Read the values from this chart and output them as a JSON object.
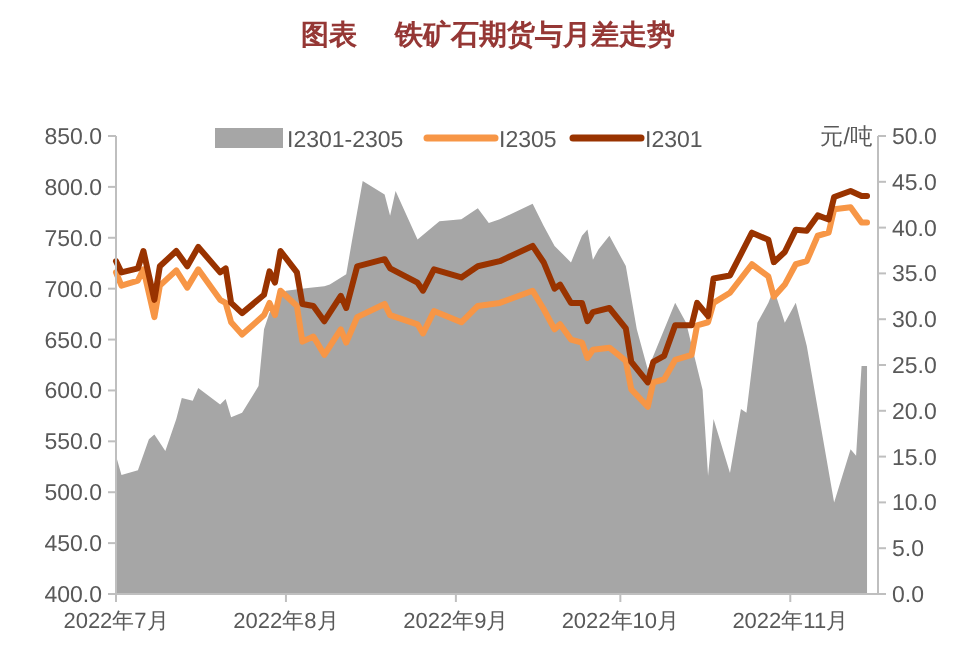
{
  "chart_data": {
    "type": "line",
    "title": "图表     铁矿石期货与月差走势",
    "y2label": "元/吨",
    "legend": "top",
    "grid": false,
    "xlim": [
      "2022-07-01",
      "2022-11-17"
    ],
    "xticks": [
      {
        "value": "2022-07-01",
        "label": "2022年7月"
      },
      {
        "value": "2022-08-01",
        "label": "2022年8月"
      },
      {
        "value": "2022-09-01",
        "label": "2022年9月"
      },
      {
        "value": "2022-10-01",
        "label": "2022年10月"
      },
      {
        "value": "2022-11-01",
        "label": "2022年11月"
      }
    ],
    "ylim": [
      400,
      850
    ],
    "yticks": [
      {
        "value": 400,
        "label": "400.0"
      },
      {
        "value": 450,
        "label": "450.0"
      },
      {
        "value": 500,
        "label": "500.0"
      },
      {
        "value": 550,
        "label": "550.0"
      },
      {
        "value": 600,
        "label": "600.0"
      },
      {
        "value": 650,
        "label": "650.0"
      },
      {
        "value": 700,
        "label": "700.0"
      },
      {
        "value": 750,
        "label": "750.0"
      },
      {
        "value": 800,
        "label": "800.0"
      },
      {
        "value": 850,
        "label": "850.0"
      }
    ],
    "y2lim": [
      0,
      50
    ],
    "y2ticks": [
      {
        "value": 0,
        "label": "0.0"
      },
      {
        "value": 5,
        "label": "5.0"
      },
      {
        "value": 10,
        "label": "10.0"
      },
      {
        "value": 15,
        "label": "15.0"
      },
      {
        "value": 20,
        "label": "20.0"
      },
      {
        "value": 25,
        "label": "25.0"
      },
      {
        "value": 30,
        "label": "30.0"
      },
      {
        "value": 35,
        "label": "35.0"
      },
      {
        "value": 40,
        "label": "40.0"
      },
      {
        "value": 45,
        "label": "45.0"
      },
      {
        "value": 50,
        "label": "50.0"
      }
    ],
    "series": [
      {
        "name": "I2301-2305",
        "type": "area",
        "axis": "y2",
        "color": "#a6a6a6",
        "x": [
          "2022-07-01",
          "2022-07-02",
          "2022-07-05",
          "2022-07-07",
          "2022-07-08",
          "2022-07-10",
          "2022-07-12",
          "2022-07-13",
          "2022-07-15",
          "2022-07-16",
          "2022-07-20",
          "2022-07-21",
          "2022-07-22",
          "2022-07-24",
          "2022-07-27",
          "2022-07-28",
          "2022-07-29",
          "2022-08-01",
          "2022-08-05",
          "2022-08-08",
          "2022-08-09",
          "2022-08-12",
          "2022-08-13",
          "2022-08-15",
          "2022-08-19",
          "2022-08-20",
          "2022-08-21",
          "2022-08-25",
          "2022-08-29",
          "2022-09-02",
          "2022-09-05",
          "2022-09-07",
          "2022-09-09",
          "2022-09-15",
          "2022-09-17",
          "2022-09-19",
          "2022-09-22",
          "2022-09-24",
          "2022-09-25",
          "2022-09-26",
          "2022-09-27",
          "2022-09-29",
          "2022-10-01",
          "2022-10-02",
          "2022-10-04",
          "2022-10-06",
          "2022-10-11",
          "2022-10-13",
          "2022-10-16",
          "2022-10-17",
          "2022-10-18",
          "2022-10-21",
          "2022-10-23",
          "2022-10-24",
          "2022-10-26",
          "2022-10-28",
          "2022-10-29",
          "2022-10-31",
          "2022-11-02",
          "2022-11-04",
          "2022-11-09",
          "2022-11-12",
          "2022-11-13",
          "2022-11-14",
          "2022-11-15"
        ],
        "values": [
          15.1,
          13.0,
          13.5,
          16.9,
          17.4,
          15.6,
          19.1,
          21.4,
          21.1,
          22.5,
          20.7,
          21.3,
          19.3,
          19.8,
          22.7,
          28.9,
          30.7,
          33.1,
          33.4,
          33.6,
          33.8,
          34.9,
          38.4,
          45.1,
          43.6,
          41.3,
          44.0,
          38.7,
          40.7,
          40.9,
          42.1,
          40.5,
          40.9,
          42.6,
          40.2,
          38.0,
          36.2,
          39.1,
          39.8,
          36.5,
          37.6,
          39.1,
          36.9,
          35.8,
          28.9,
          24.5,
          31.8,
          29.6,
          22.3,
          12.9,
          19.1,
          13.2,
          20.2,
          19.8,
          29.6,
          31.8,
          33.3,
          29.6,
          31.8,
          27.1,
          10.0,
          15.8,
          15.1,
          24.9,
          24.9
        ]
      },
      {
        "name": "I2305",
        "type": "line",
        "color": "#f79646",
        "x": [
          "2022-07-01",
          "2022-07-02",
          "2022-07-05",
          "2022-07-06",
          "2022-07-08",
          "2022-07-09",
          "2022-07-12",
          "2022-07-14",
          "2022-07-16",
          "2022-07-20",
          "2022-07-21",
          "2022-07-22",
          "2022-07-24",
          "2022-07-28",
          "2022-07-29",
          "2022-07-30",
          "2022-07-31",
          "2022-08-03",
          "2022-08-04",
          "2022-08-06",
          "2022-08-08",
          "2022-08-11",
          "2022-08-12",
          "2022-08-14",
          "2022-08-19",
          "2022-08-20",
          "2022-08-25",
          "2022-08-26",
          "2022-08-28",
          "2022-09-02",
          "2022-09-05",
          "2022-09-09",
          "2022-09-15",
          "2022-09-17",
          "2022-09-19",
          "2022-09-20",
          "2022-09-22",
          "2022-09-24",
          "2022-09-25",
          "2022-09-26",
          "2022-09-29",
          "2022-10-02",
          "2022-10-03",
          "2022-10-06",
          "2022-10-07",
          "2022-10-09",
          "2022-10-11",
          "2022-10-14",
          "2022-10-15",
          "2022-10-17",
          "2022-10-18",
          "2022-10-21",
          "2022-10-25",
          "2022-10-28",
          "2022-10-29",
          "2022-10-31",
          "2022-11-02",
          "2022-11-04",
          "2022-11-06",
          "2022-11-08",
          "2022-11-09",
          "2022-11-12",
          "2022-11-14",
          "2022-11-15"
        ],
        "values": [
          716,
          703,
          708,
          719,
          672,
          703,
          718,
          701,
          719,
          689,
          686,
          667,
          655,
          674,
          686,
          674,
          698,
          683,
          648,
          653,
          635,
          660,
          647,
          672,
          685,
          674,
          665,
          656,
          678,
          667,
          683,
          686,
          698,
          680,
          660,
          665,
          650,
          647,
          632,
          640,
          642,
          629,
          601,
          584,
          608,
          611,
          630,
          635,
          664,
          667,
          686,
          696,
          724,
          712,
          692,
          704,
          724,
          727,
          752,
          755,
          778,
          780,
          765,
          765
        ]
      },
      {
        "name": "I2301",
        "type": "line",
        "color": "#993300",
        "x": [
          "2022-07-01",
          "2022-07-02",
          "2022-07-05",
          "2022-07-06",
          "2022-07-08",
          "2022-07-09",
          "2022-07-12",
          "2022-07-14",
          "2022-07-16",
          "2022-07-20",
          "2022-07-21",
          "2022-07-22",
          "2022-07-24",
          "2022-07-28",
          "2022-07-29",
          "2022-07-30",
          "2022-07-31",
          "2022-08-03",
          "2022-08-04",
          "2022-08-06",
          "2022-08-08",
          "2022-08-11",
          "2022-08-12",
          "2022-08-14",
          "2022-08-19",
          "2022-08-20",
          "2022-08-25",
          "2022-08-26",
          "2022-08-28",
          "2022-09-02",
          "2022-09-05",
          "2022-09-09",
          "2022-09-15",
          "2022-09-17",
          "2022-09-19",
          "2022-09-20",
          "2022-09-22",
          "2022-09-24",
          "2022-09-25",
          "2022-09-26",
          "2022-09-29",
          "2022-10-02",
          "2022-10-03",
          "2022-10-06",
          "2022-10-07",
          "2022-10-09",
          "2022-10-11",
          "2022-10-14",
          "2022-10-15",
          "2022-10-17",
          "2022-10-18",
          "2022-10-21",
          "2022-10-25",
          "2022-10-28",
          "2022-10-29",
          "2022-10-31",
          "2022-11-02",
          "2022-11-04",
          "2022-11-06",
          "2022-11-08",
          "2022-11-09",
          "2022-11-12",
          "2022-11-14",
          "2022-11-15"
        ],
        "values": [
          727,
          716,
          720,
          737,
          689,
          722,
          737,
          722,
          741,
          716,
          720,
          686,
          676,
          694,
          717,
          706,
          737,
          716,
          685,
          683,
          668,
          693,
          681,
          722,
          729,
          720,
          706,
          698,
          719,
          711,
          722,
          727,
          742,
          726,
          700,
          704,
          686,
          686,
          668,
          677,
          681,
          661,
          628,
          608,
          628,
          634,
          664,
          664,
          686,
          673,
          710,
          713,
          755,
          748,
          726,
          736,
          758,
          757,
          772,
          768,
          790,
          796,
          791,
          791
        ]
      }
    ]
  }
}
